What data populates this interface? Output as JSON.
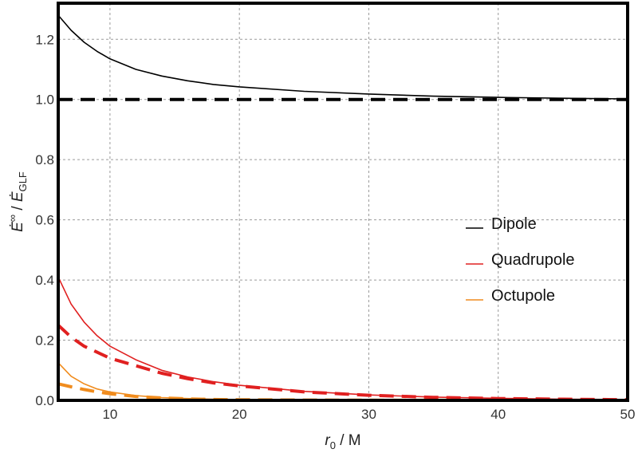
{
  "chart_data": {
    "type": "line",
    "xlabel": "r0 / M",
    "ylabel": "Ė∞ / ĖGLF",
    "xlim": [
      6,
      50
    ],
    "ylim": [
      0,
      1.32
    ],
    "xticks": [
      10,
      20,
      30,
      40,
      50
    ],
    "yticks": [
      0.0,
      0.2,
      0.4,
      0.6,
      0.8,
      1.0,
      1.2
    ],
    "xtick_labels": [
      "10",
      "20",
      "30",
      "40",
      "50"
    ],
    "ytick_labels": [
      "0.0",
      "0.2",
      "0.4",
      "0.6",
      "0.8",
      "1.0",
      "1.2"
    ],
    "grid": true,
    "legend_position": "right-middle",
    "x": [
      6,
      7,
      8,
      9,
      10,
      12,
      14,
      16,
      18,
      20,
      25,
      30,
      35,
      40,
      45,
      50
    ],
    "series": [
      {
        "name": "Dipole",
        "color": "#000000",
        "style": "solid",
        "values": [
          1.28,
          1.23,
          1.19,
          1.16,
          1.135,
          1.1,
          1.078,
          1.062,
          1.05,
          1.042,
          1.027,
          1.018,
          1.011,
          1.007,
          1.004,
          1.002
        ]
      },
      {
        "name": "",
        "color": "#000000",
        "style": "dashed",
        "values": [
          1.0,
          1.0,
          1.0,
          1.0,
          1.0,
          1.0,
          1.0,
          1.0,
          1.0,
          1.0,
          1.0,
          1.0,
          1.0,
          1.0,
          1.0,
          1.0
        ]
      },
      {
        "name": "Quadrupole",
        "color": "#e02020",
        "style": "solid",
        "values": [
          0.41,
          0.32,
          0.26,
          0.215,
          0.18,
          0.135,
          0.1,
          0.078,
          0.062,
          0.05,
          0.03,
          0.018,
          0.011,
          0.007,
          0.004,
          0.003
        ]
      },
      {
        "name": "",
        "color": "#e02020",
        "style": "dashed",
        "values": [
          0.25,
          0.21,
          0.18,
          0.16,
          0.14,
          0.115,
          0.09,
          0.072,
          0.058,
          0.048,
          0.028,
          0.017,
          0.01,
          0.006,
          0.004,
          0.002
        ]
      },
      {
        "name": "Octupole",
        "color": "#f08c1e",
        "style": "solid",
        "values": [
          0.125,
          0.08,
          0.055,
          0.038,
          0.028,
          0.016,
          0.009,
          0.006,
          0.004,
          0.003,
          0.001,
          0.0005,
          0.0002,
          0.0001,
          0.0,
          0.0
        ]
      },
      {
        "name": "",
        "color": "#f08c1e",
        "style": "dashed",
        "values": [
          0.055,
          0.045,
          0.036,
          0.028,
          0.022,
          0.013,
          0.008,
          0.005,
          0.003,
          0.002,
          0.001,
          0.0004,
          0.0002,
          0.0001,
          0.0,
          0.0
        ]
      }
    ]
  }
}
